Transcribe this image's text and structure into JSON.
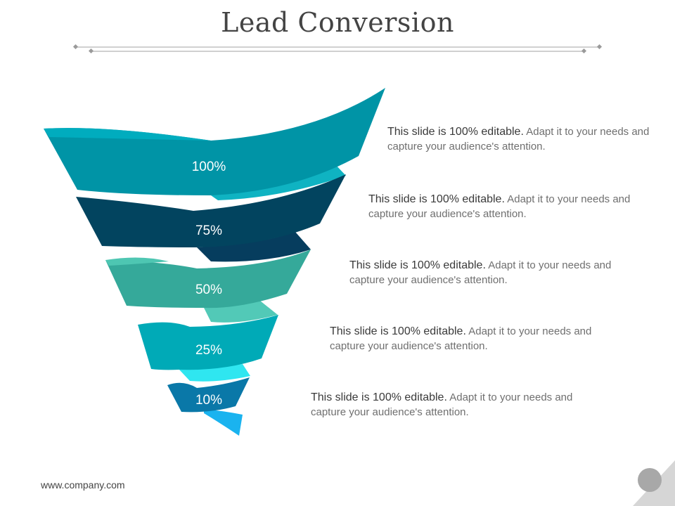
{
  "title": "Lead Conversion",
  "footer": "www.company.com",
  "colors": {
    "level1": "#0094a6",
    "level2": "#02445f",
    "level3": "#35a99a",
    "level4": "#00aab7",
    "level5": "#0a78a8",
    "accent_light": "#2fe6f0",
    "accent_blue": "#1ab3ef"
  },
  "levels": [
    {
      "label": "100%",
      "lead": "This slide is 100% editable.",
      "text": "Adapt it to your needs and capture your audience's attention."
    },
    {
      "label": "75%",
      "lead": "This slide is 100% editable.",
      "text": "Adapt it to your needs and capture your audience's attention."
    },
    {
      "label": "50%",
      "lead": "This slide is 100% editable.",
      "text": "Adapt it to your needs and capture your audience's attention."
    },
    {
      "label": "25%",
      "lead": "This slide is 100% editable.",
      "text": "Adapt it to your needs and capture your audience's attention."
    },
    {
      "label": "10%",
      "lead": "This slide is 100% editable.",
      "text": "Adapt it to your needs and capture your audience's attention."
    }
  ]
}
